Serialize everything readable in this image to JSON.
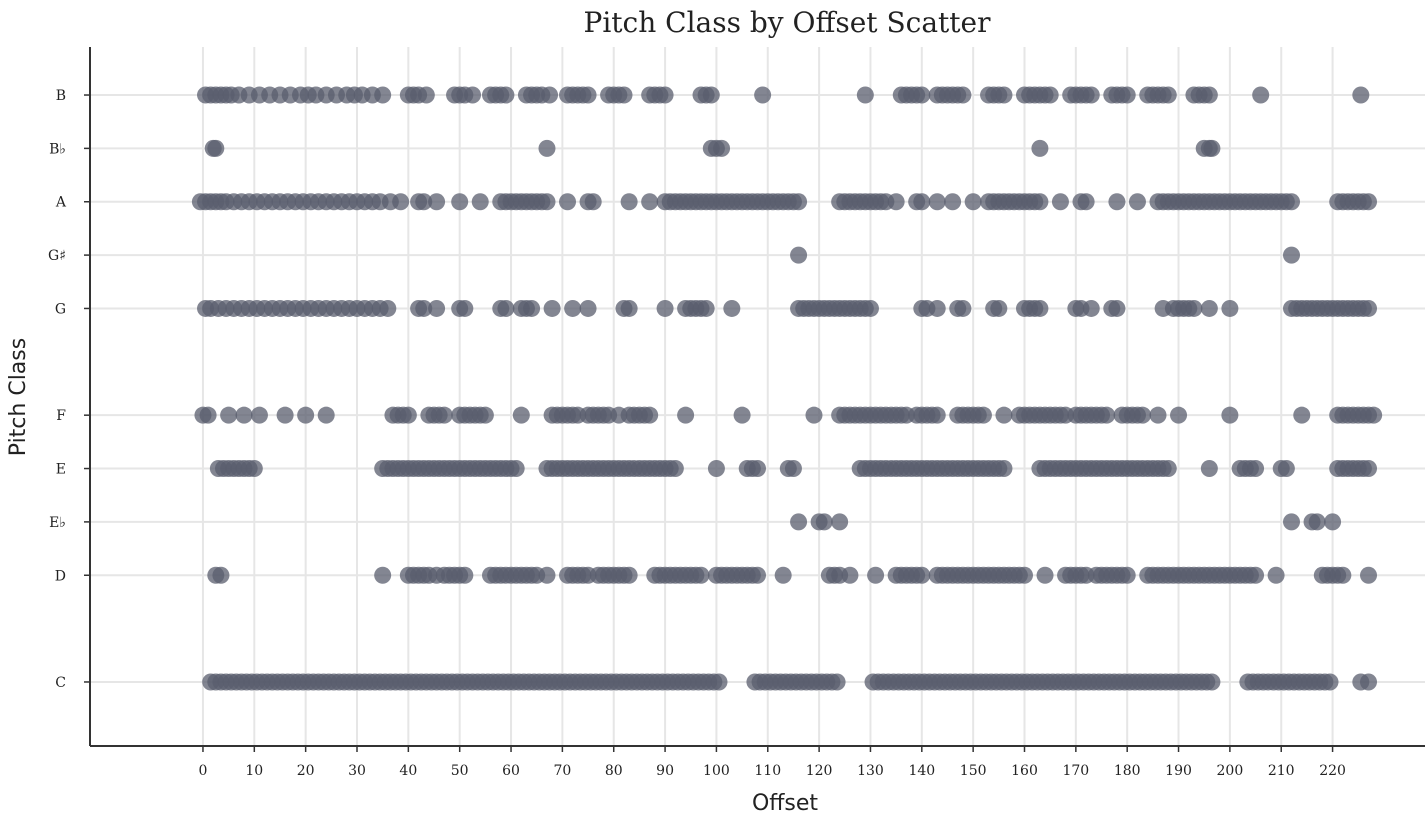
{
  "chart_data": {
    "type": "scatter",
    "title": "Pitch Class by Offset Scatter",
    "xlabel": "Offset",
    "ylabel": "Pitch Class",
    "xlim": [
      -22,
      238
    ],
    "xticks": [
      0,
      10,
      20,
      30,
      40,
      50,
      60,
      70,
      80,
      90,
      100,
      110,
      120,
      130,
      140,
      150,
      160,
      170,
      180,
      190,
      200,
      210,
      220
    ],
    "ylim": [
      -1.2,
      11.9
    ],
    "grid": true,
    "point_color": "#5a5d6e",
    "categories": [
      {
        "label": "C",
        "value": 0
      },
      {
        "label": "D",
        "value": 2
      },
      {
        "label": "E♭",
        "value": 3
      },
      {
        "label": "E",
        "value": 4
      },
      {
        "label": "F",
        "value": 5
      },
      {
        "label": "G",
        "value": 7
      },
      {
        "label": "G♯",
        "value": 8
      },
      {
        "label": "A",
        "value": 9
      },
      {
        "label": "B♭",
        "value": 10
      },
      {
        "label": "B",
        "value": 11
      }
    ],
    "series": [
      {
        "pitch": 11,
        "offsets": [
          0.5,
          1.5,
          2.5,
          3.5,
          4.5,
          5.5,
          7,
          9,
          11,
          13,
          15,
          17,
          19,
          20.5,
          22,
          24,
          26,
          28,
          29.5,
          31,
          33,
          35,
          40,
          41,
          42,
          43.5,
          49,
          50,
          51,
          52.5,
          56,
          57,
          58,
          59,
          63,
          64,
          65,
          66,
          67.5,
          71,
          72,
          73,
          74,
          75,
          79,
          80,
          81,
          82,
          87,
          88,
          89,
          90,
          97,
          98,
          99,
          109,
          129,
          136,
          137,
          138,
          139,
          140,
          143,
          144,
          145,
          146,
          147,
          148,
          153,
          154,
          155,
          156,
          160,
          161,
          162,
          163,
          164,
          165,
          169,
          170,
          171,
          172,
          173,
          177,
          178,
          179,
          180,
          184,
          185,
          186,
          187,
          188,
          193,
          194,
          195,
          196,
          206,
          225.5
        ]
      },
      {
        "pitch": 10,
        "offsets": [
          2,
          2.5,
          67,
          99,
          100,
          101,
          163,
          195,
          196,
          196.5
        ]
      },
      {
        "pitch": 9,
        "offsets": [
          -0.5,
          0.5,
          1.5,
          2.5,
          3.5,
          4.5,
          6,
          7.5,
          9,
          10.5,
          12,
          13.5,
          15,
          16.5,
          18,
          19.5,
          21,
          22.5,
          24,
          25.5,
          27,
          28.5,
          30,
          31.5,
          33,
          34.5,
          36.5,
          38.5,
          42,
          43,
          45.5,
          50,
          54,
          58,
          59,
          60,
          61,
          62,
          63,
          64,
          65,
          66,
          67,
          71,
          75,
          76,
          83,
          87,
          90,
          91,
          92,
          93,
          94,
          95,
          96,
          97,
          98,
          99,
          100,
          101,
          102,
          103,
          104,
          105,
          106,
          107,
          108,
          109,
          110,
          111,
          112,
          113,
          114,
          115,
          116,
          124,
          125,
          126,
          127,
          128,
          129,
          130,
          131,
          132,
          133,
          135,
          139,
          140,
          143,
          146,
          150,
          153,
          154,
          155,
          156,
          157,
          158,
          159,
          160,
          161,
          162,
          163,
          167,
          171,
          172,
          178,
          182,
          186,
          187,
          188,
          189,
          190,
          191,
          192,
          193,
          194,
          195,
          196,
          197,
          198,
          199,
          200,
          201,
          202,
          203,
          204,
          205,
          206,
          207,
          208,
          209,
          210,
          211,
          212,
          221,
          222,
          223,
          224,
          225,
          226,
          227
        ]
      },
      {
        "pitch": 8,
        "offsets": [
          116,
          212
        ]
      },
      {
        "pitch": 7,
        "offsets": [
          0.5,
          1.5,
          3,
          4.5,
          6,
          7.5,
          9,
          10.5,
          12,
          13.5,
          15,
          16.5,
          18,
          19.5,
          21,
          22.5,
          24,
          25.5,
          27,
          28.5,
          30,
          31.5,
          33,
          34.5,
          36,
          42,
          43,
          45.5,
          50,
          51,
          58,
          59,
          62,
          63,
          64,
          68,
          72,
          75,
          82,
          83,
          90,
          94,
          95,
          96,
          97,
          98,
          103,
          116,
          117,
          118,
          119,
          120,
          121,
          122,
          123,
          124,
          125,
          126,
          127,
          128,
          129,
          130,
          140,
          141,
          143,
          147,
          148,
          154,
          155,
          160,
          161,
          162,
          163,
          170,
          171,
          173,
          177,
          178,
          187,
          189,
          190,
          191,
          192,
          193,
          196,
          200,
          212,
          213,
          214,
          215,
          216,
          217,
          218,
          219,
          220,
          221,
          222,
          223,
          224,
          225,
          226,
          227
        ]
      },
      {
        "pitch": 5,
        "offsets": [
          0,
          1,
          5,
          8,
          11,
          16,
          20,
          24,
          37,
          38,
          39,
          40,
          44,
          45,
          46,
          47,
          50,
          51,
          52,
          53,
          54,
          55,
          62,
          68,
          69,
          70,
          71,
          72,
          73,
          75,
          76,
          77,
          78,
          79,
          81,
          83,
          84,
          85,
          86,
          87,
          94,
          105,
          119,
          124,
          125,
          126,
          127,
          128,
          129,
          130,
          131,
          132,
          133,
          134,
          135,
          136,
          137,
          139,
          140,
          141,
          142,
          143,
          147,
          148,
          149,
          150,
          151,
          152,
          156,
          159,
          160,
          161,
          162,
          163,
          164,
          165,
          166,
          167,
          168,
          170,
          171,
          172,
          173,
          174,
          175,
          176,
          179,
          180,
          181,
          182,
          183,
          186,
          190,
          200,
          214,
          221,
          222,
          223,
          224,
          225,
          226,
          227,
          228
        ]
      },
      {
        "pitch": 4,
        "offsets": [
          3,
          4,
          5,
          6,
          7,
          8,
          9,
          10,
          35,
          36,
          37,
          38,
          39,
          40,
          41,
          42,
          43,
          44,
          45,
          46,
          47,
          48,
          49,
          50,
          51,
          52,
          53,
          54,
          55,
          56,
          57,
          58,
          59,
          60,
          61,
          67,
          68,
          69,
          70,
          71,
          72,
          73,
          74,
          75,
          76,
          77,
          78,
          79,
          80,
          81,
          82,
          83,
          84,
          85,
          86,
          87,
          88,
          89,
          90,
          91,
          92,
          100,
          106,
          107,
          108,
          114,
          115,
          128,
          129,
          130,
          131,
          132,
          133,
          134,
          135,
          136,
          137,
          138,
          139,
          140,
          141,
          142,
          143,
          144,
          145,
          146,
          147,
          148,
          149,
          150,
          151,
          152,
          153,
          154,
          155,
          156,
          163,
          164,
          165,
          166,
          167,
          168,
          169,
          170,
          171,
          172,
          173,
          174,
          175,
          176,
          177,
          178,
          179,
          180,
          181,
          182,
          183,
          184,
          185,
          186,
          187,
          188,
          196,
          202,
          203,
          204,
          205,
          210,
          211,
          221,
          222,
          223,
          224,
          225,
          226,
          227
        ]
      },
      {
        "pitch": 3,
        "offsets": [
          116,
          120,
          121,
          124,
          212,
          216,
          217,
          220
        ]
      },
      {
        "pitch": 2,
        "offsets": [
          2.5,
          3.5,
          35,
          40,
          41,
          42,
          43,
          44,
          45.5,
          47,
          48,
          49,
          50,
          51,
          56,
          57,
          58,
          59,
          60,
          61,
          62,
          63,
          64,
          65,
          67,
          71,
          72,
          73,
          74,
          75,
          77,
          78,
          79,
          80,
          81,
          82,
          83,
          88,
          89,
          90,
          91,
          92,
          93,
          94,
          95,
          96,
          97,
          100,
          101,
          102,
          103,
          104,
          105,
          106,
          107,
          108,
          113,
          122,
          123,
          124,
          126,
          131,
          135,
          136,
          137,
          138,
          139,
          140,
          143,
          144,
          145,
          146,
          147,
          148,
          149,
          150,
          151,
          152,
          153,
          154,
          155,
          156,
          157,
          158,
          159,
          160,
          164,
          168,
          169,
          170,
          171,
          172,
          174,
          175,
          176,
          177,
          178,
          179,
          180,
          184,
          185,
          186,
          187,
          188,
          189,
          190,
          191,
          192,
          193,
          194,
          195,
          196,
          197,
          198,
          199,
          200,
          201,
          202,
          203,
          204,
          205,
          209,
          218,
          219,
          220,
          221,
          222,
          227
        ]
      },
      {
        "pitch": 0,
        "offsets": [
          1.5,
          2.5,
          3.5,
          4.5,
          5.5,
          6.5,
          7.5,
          8.5,
          9.5,
          10.5,
          11.5,
          12.5,
          13.5,
          14.5,
          15.5,
          16.5,
          17.5,
          18.5,
          19.5,
          20.5,
          21.5,
          22.5,
          23.5,
          24.5,
          25.5,
          26.5,
          27.5,
          28.5,
          29.5,
          30.5,
          31.5,
          32.5,
          33.5,
          34.5,
          35.5,
          36.5,
          37.5,
          38.5,
          39.5,
          40.5,
          41.5,
          42.5,
          43.5,
          44.5,
          45.5,
          46.5,
          47.5,
          48.5,
          49.5,
          50.5,
          51.5,
          52.5,
          53.5,
          54.5,
          55.5,
          56.5,
          57.5,
          58.5,
          59.5,
          60.5,
          61.5,
          62.5,
          63.5,
          64.5,
          65.5,
          66.5,
          67.5,
          68.5,
          69.5,
          70.5,
          71.5,
          72.5,
          73.5,
          74.5,
          75.5,
          76.5,
          77.5,
          78.5,
          79.5,
          80.5,
          81.5,
          82.5,
          83.5,
          84.5,
          85.5,
          86.5,
          87.5,
          88.5,
          89.5,
          90.5,
          91.5,
          92.5,
          93.5,
          94.5,
          95.5,
          96.5,
          97.5,
          98.5,
          99.5,
          100.5,
          107.5,
          108.5,
          109.5,
          110.5,
          111.5,
          112.5,
          113.5,
          114.5,
          115.5,
          116.5,
          117.5,
          118.5,
          119.5,
          120.5,
          121.5,
          122.5,
          123.5,
          130.5,
          131.5,
          132.5,
          133.5,
          134.5,
          135.5,
          136.5,
          137.5,
          138.5,
          139.5,
          140.5,
          141.5,
          142.5,
          143.5,
          144.5,
          145.5,
          146.5,
          147.5,
          148.5,
          149.5,
          150.5,
          151.5,
          152.5,
          153.5,
          154.5,
          155.5,
          156.5,
          157.5,
          158.5,
          159.5,
          160.5,
          161.5,
          162.5,
          163.5,
          164.5,
          165.5,
          166.5,
          167.5,
          168.5,
          169.5,
          170.5,
          171.5,
          172.5,
          173.5,
          174.5,
          175.5,
          176.5,
          177.5,
          178.5,
          179.5,
          180.5,
          181.5,
          182.5,
          183.5,
          184.5,
          185.5,
          186.5,
          187.5,
          188.5,
          189.5,
          190.5,
          191.5,
          192.5,
          193.5,
          194.5,
          195.5,
          196.5,
          203.5,
          204.5,
          205.5,
          206.5,
          207.5,
          208.5,
          209.5,
          210.5,
          211.5,
          212.5,
          213.5,
          214.5,
          215.5,
          216.5,
          217.5,
          218.5,
          219.5,
          225.5,
          227
        ]
      }
    ]
  }
}
